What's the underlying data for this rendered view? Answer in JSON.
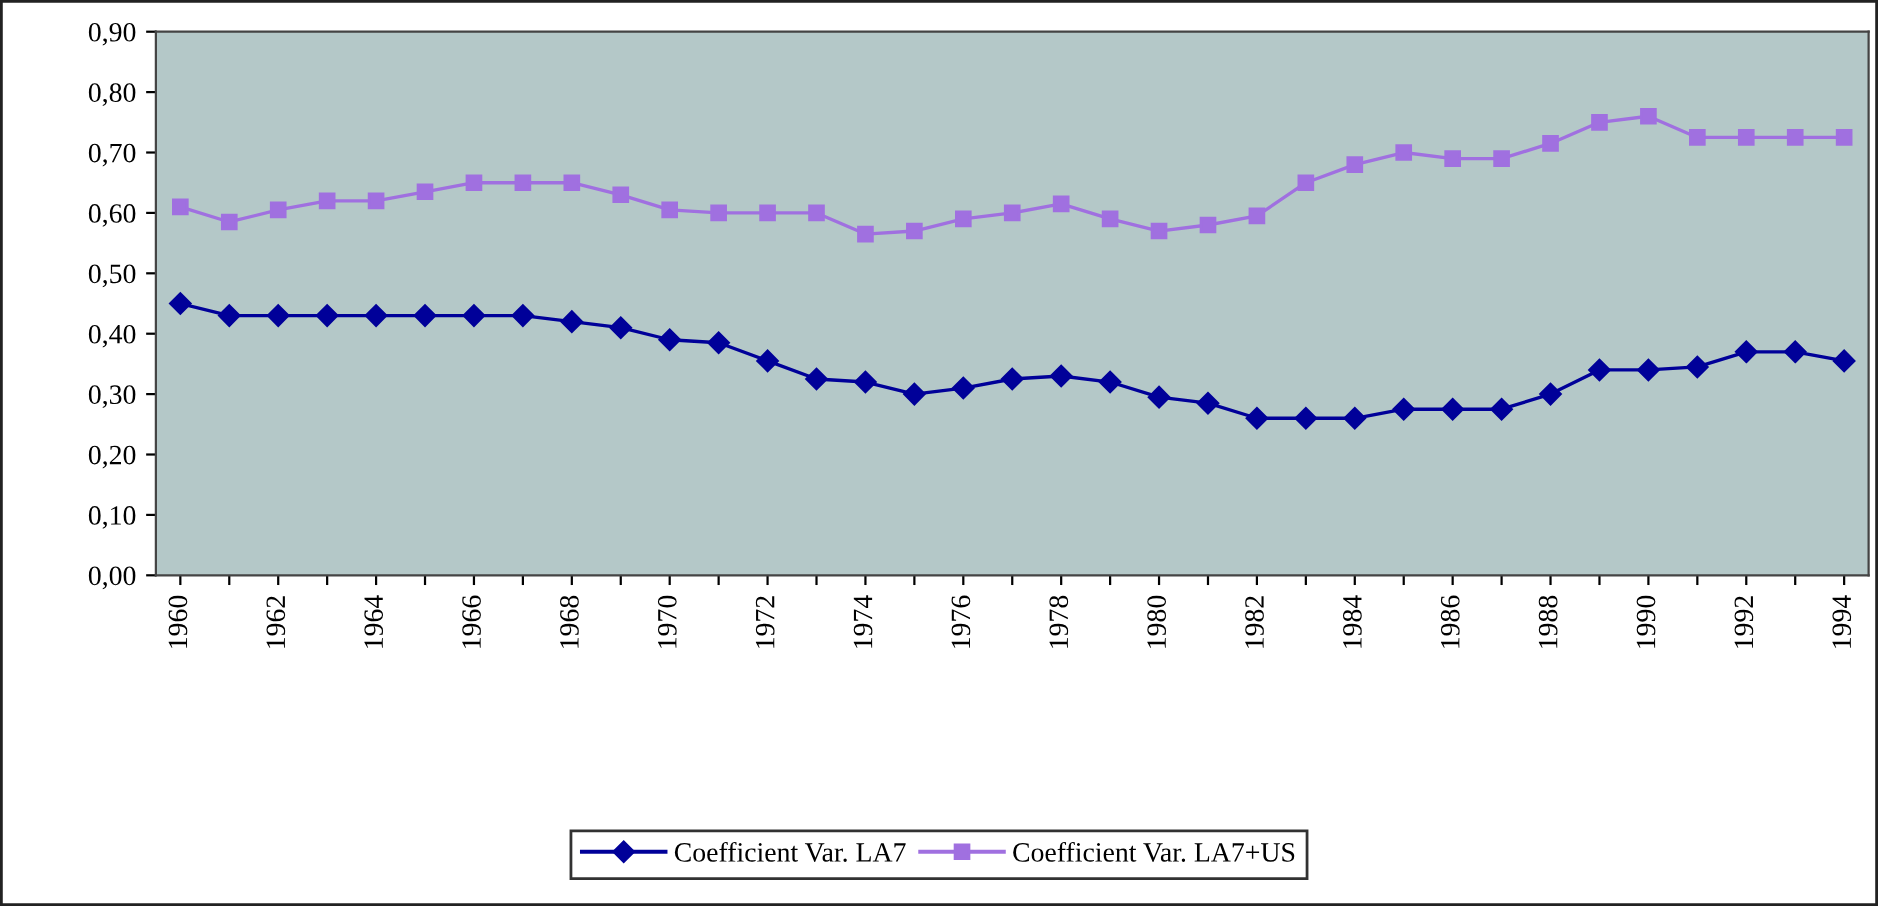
{
  "chart_data": {
    "type": "line",
    "categories": [
      "1960",
      null,
      "1962",
      null,
      "1964",
      null,
      "1966",
      null,
      "1968",
      null,
      "1970",
      null,
      "1972",
      null,
      "1974",
      null,
      "1976",
      null,
      "1978",
      null,
      "1980",
      null,
      "1982",
      null,
      "1984",
      null,
      "1986",
      null,
      "1988",
      null,
      "1990",
      null,
      "1992",
      null,
      "1994"
    ],
    "series": [
      {
        "name": "Coefficient Var. LA7",
        "color": "#000099",
        "marker": "diamond",
        "values": [
          0.45,
          0.43,
          0.43,
          0.43,
          0.43,
          0.43,
          0.43,
          0.43,
          0.42,
          0.41,
          0.39,
          0.385,
          0.355,
          0.325,
          0.32,
          0.3,
          0.31,
          0.325,
          0.33,
          0.32,
          0.295,
          0.285,
          0.26,
          0.26,
          0.26,
          0.275,
          0.275,
          0.275,
          0.3,
          0.34,
          0.34,
          0.345,
          0.37,
          0.37,
          0.355
        ]
      },
      {
        "name": "Coefficient Var. LA7+US",
        "color": "#a070e0",
        "marker": "square",
        "values": [
          0.61,
          0.585,
          0.605,
          0.62,
          0.62,
          0.635,
          0.65,
          0.65,
          0.65,
          0.63,
          0.605,
          0.6,
          0.6,
          0.6,
          0.565,
          0.57,
          0.59,
          0.6,
          0.615,
          0.59,
          0.57,
          0.58,
          0.595,
          0.65,
          0.68,
          0.7,
          0.69,
          0.69,
          0.715,
          0.75,
          0.76,
          0.725,
          0.725,
          0.725,
          0.725
        ]
      }
    ],
    "ylim": [
      0,
      0.9
    ],
    "yticks": [
      {
        "value": 0,
        "label": "0,00"
      },
      {
        "value": 0.1,
        "label": "0,10"
      },
      {
        "value": 0.2,
        "label": "0,20"
      },
      {
        "value": 0.3,
        "label": "0,30"
      },
      {
        "value": 0.4,
        "label": "0,40"
      },
      {
        "value": 0.5,
        "label": "0,50"
      },
      {
        "value": 0.6,
        "label": "0,60"
      },
      {
        "value": 0.7,
        "label": "0,70"
      },
      {
        "value": 0.8,
        "label": "0,80"
      },
      {
        "value": 0.9,
        "label": "0,90"
      }
    ],
    "grid": false,
    "legend": "bottom",
    "line_style": "solid"
  }
}
